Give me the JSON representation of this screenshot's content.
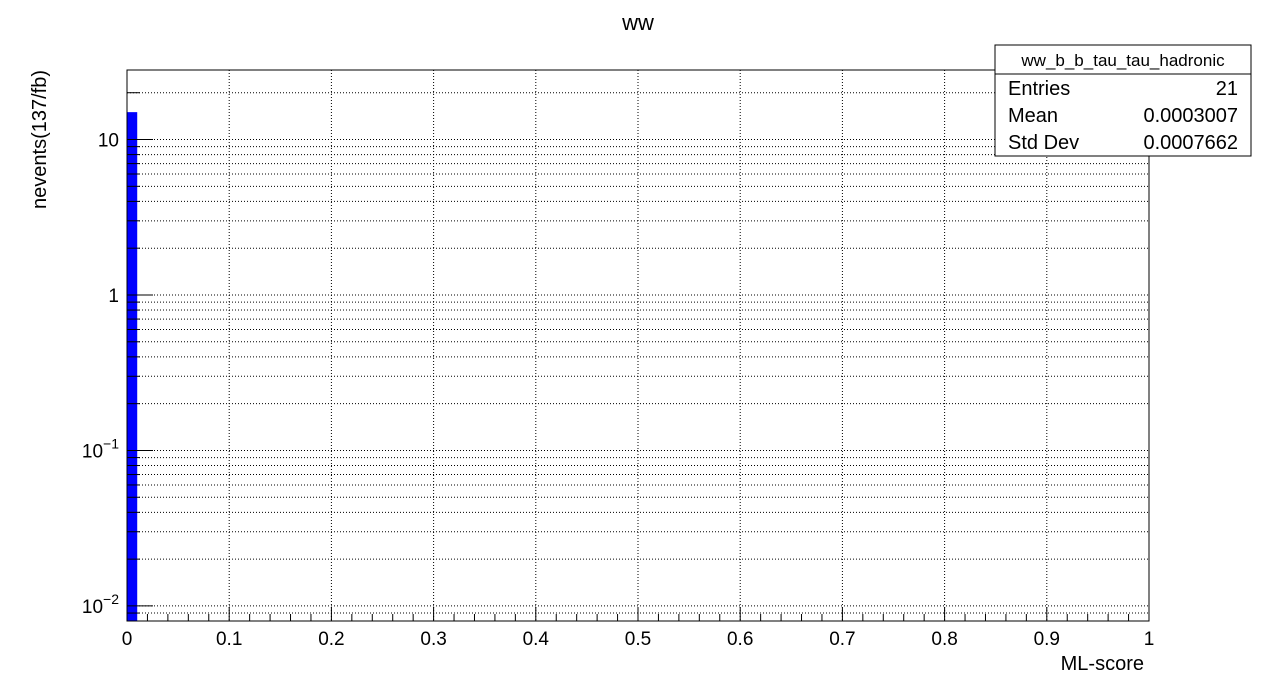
{
  "chart_data": {
    "type": "bar",
    "title": "ww",
    "xlabel": "ML-score",
    "ylabel": "nevents(137/fb)",
    "xlim": [
      0,
      1
    ],
    "ylim": [
      0.008,
      28
    ],
    "yscale": "log",
    "grid": true,
    "x_ticks": [
      "0",
      "0.1",
      "0.2",
      "0.3",
      "0.4",
      "0.5",
      "0.6",
      "0.7",
      "0.8",
      "0.9",
      "1"
    ],
    "y_ticks": [
      {
        "base": "10",
        "exp": "−2"
      },
      {
        "base": "10",
        "exp": "−1"
      },
      {
        "base": "1",
        "exp": ""
      },
      {
        "base": "10",
        "exp": ""
      }
    ],
    "bins": [
      {
        "x0": 0,
        "x1": 0.01,
        "value": 15
      }
    ],
    "bar_color": "#0000ff",
    "stats_box": {
      "name": "ww_b_b_tau_tau_hadronic",
      "rows": [
        {
          "label": "Entries",
          "value": "21"
        },
        {
          "label": "Mean",
          "value": "0.0003007"
        },
        {
          "label": "Std Dev",
          "value": "0.0007662"
        }
      ]
    }
  }
}
